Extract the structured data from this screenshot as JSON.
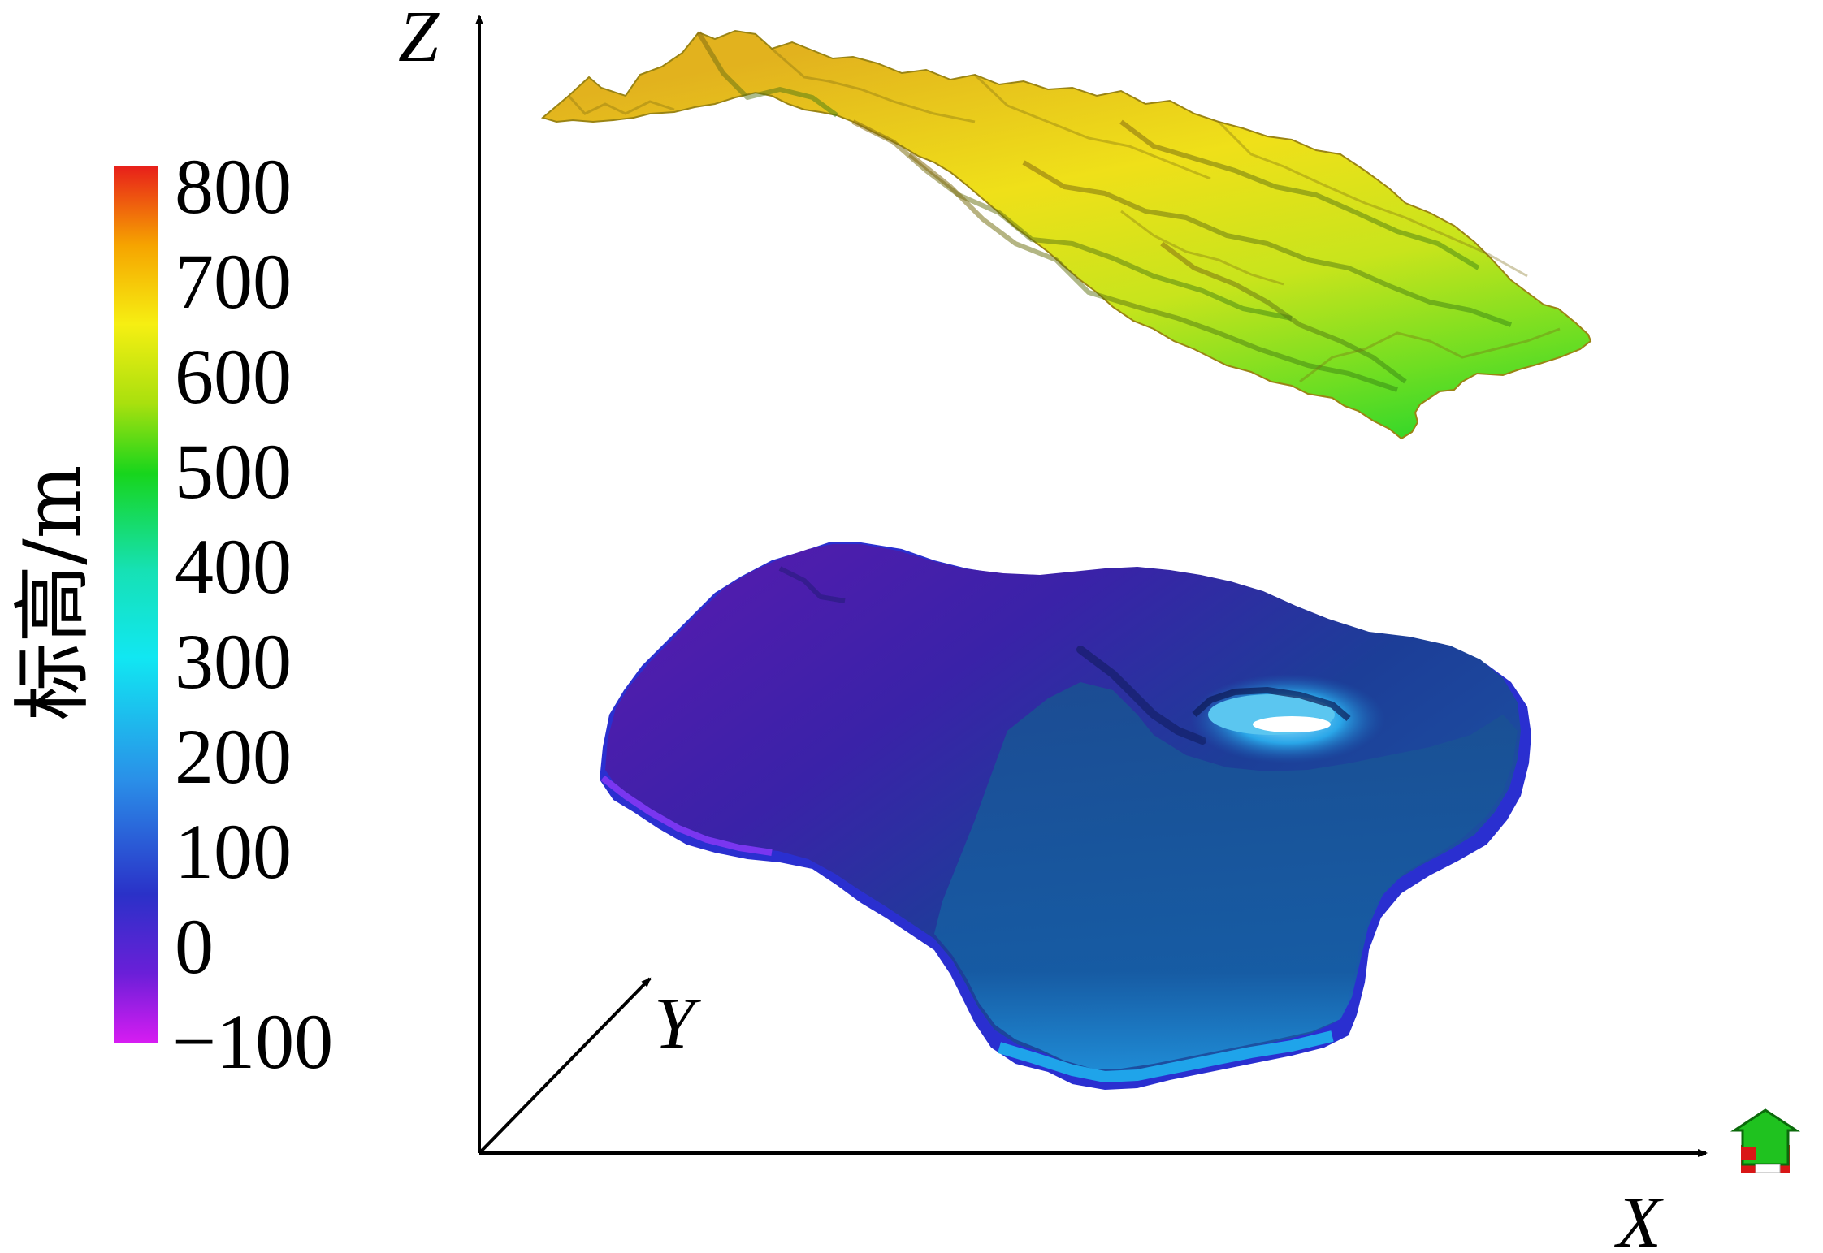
{
  "legend": {
    "title": "标高/m",
    "ticks": [
      "800",
      "700",
      "600",
      "500",
      "400",
      "300",
      "200",
      "100",
      "0",
      "−100"
    ],
    "values": [
      800,
      700,
      600,
      500,
      400,
      300,
      200,
      100,
      0,
      -100
    ],
    "color_stops": [
      "#e8201a",
      "#f6a400",
      "#f6ef12",
      "#a9e00e",
      "#17d51c",
      "#16e1b4",
      "#11e7f2",
      "#2a8fe8",
      "#2a31c8",
      "#d81cf2"
    ]
  },
  "axes": {
    "x_label": "X",
    "y_label": "Y",
    "z_label": "Z"
  },
  "colors": {
    "upper_surface_top": "#e6b21a",
    "upper_surface_bottom": "#3fdc2a",
    "lower_surface_main": "#1d52a6",
    "lower_surface_dark": "#4b1ea8",
    "lower_surface_edge": "#1b9de8"
  },
  "icons": {
    "orientation": "orientation-cube-icon"
  }
}
